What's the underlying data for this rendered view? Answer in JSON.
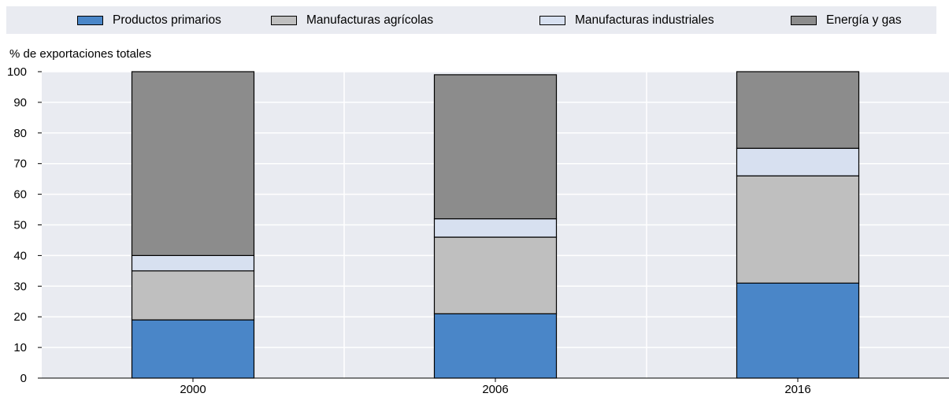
{
  "legend": [
    {
      "label": "Productos primarios",
      "color": "#4a86c8"
    },
    {
      "label": "Manufacturas agrícolas",
      "color": "#bfbfbf"
    },
    {
      "label": "Manufacturas industriales",
      "color": "#d7e0f0"
    },
    {
      "label": "Energía y gas",
      "color": "#8c8c8c"
    }
  ],
  "chart_data": {
    "type": "bar",
    "stacked": true,
    "categories": [
      "2000",
      "2006",
      "2016"
    ],
    "ylabel": "% de exportaciones totales",
    "ylim": [
      0,
      100
    ],
    "yticks": [
      0,
      10,
      20,
      30,
      40,
      50,
      60,
      70,
      80,
      90,
      100
    ],
    "grid": true,
    "legend_position": "top",
    "series": [
      {
        "name": "Productos primarios",
        "color": "#4a86c8",
        "values": [
          19,
          21,
          31
        ]
      },
      {
        "name": "Manufacturas agrícolas",
        "color": "#bfbfbf",
        "values": [
          16,
          25,
          35
        ]
      },
      {
        "name": "Manufacturas industriales",
        "color": "#d7e0f0",
        "values": [
          5,
          6,
          9
        ]
      },
      {
        "name": "Energía y gas",
        "color": "#8c8c8c",
        "values": [
          60,
          47,
          25
        ]
      }
    ]
  }
}
